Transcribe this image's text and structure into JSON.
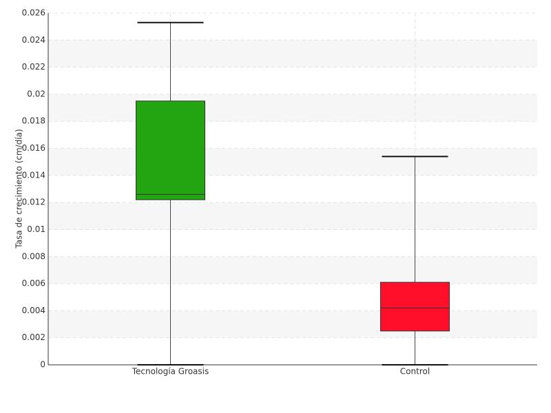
{
  "chart_data": {
    "type": "box",
    "ylabel": "Tasa de crecimiento (cm/día)",
    "categories": [
      "Tecnología Groasis",
      "Control"
    ],
    "colors": [
      "#22a511",
      "#ff0f2a"
    ],
    "boxes": [
      {
        "min": 0,
        "q1": 0.0122,
        "median": 0.0126,
        "q3": 0.0195,
        "max": 0.0253
      },
      {
        "min": 0,
        "q1": 0.0025,
        "median": 0.0042,
        "q3": 0.0061,
        "max": 0.0154
      }
    ],
    "ylim": [
      0,
      0.026
    ],
    "yticks": [
      0,
      0.002,
      0.004,
      0.006,
      0.008,
      0.01,
      0.012,
      0.014,
      0.016,
      0.018,
      0.02,
      0.022,
      0.024,
      0.026
    ],
    "grid": true
  }
}
